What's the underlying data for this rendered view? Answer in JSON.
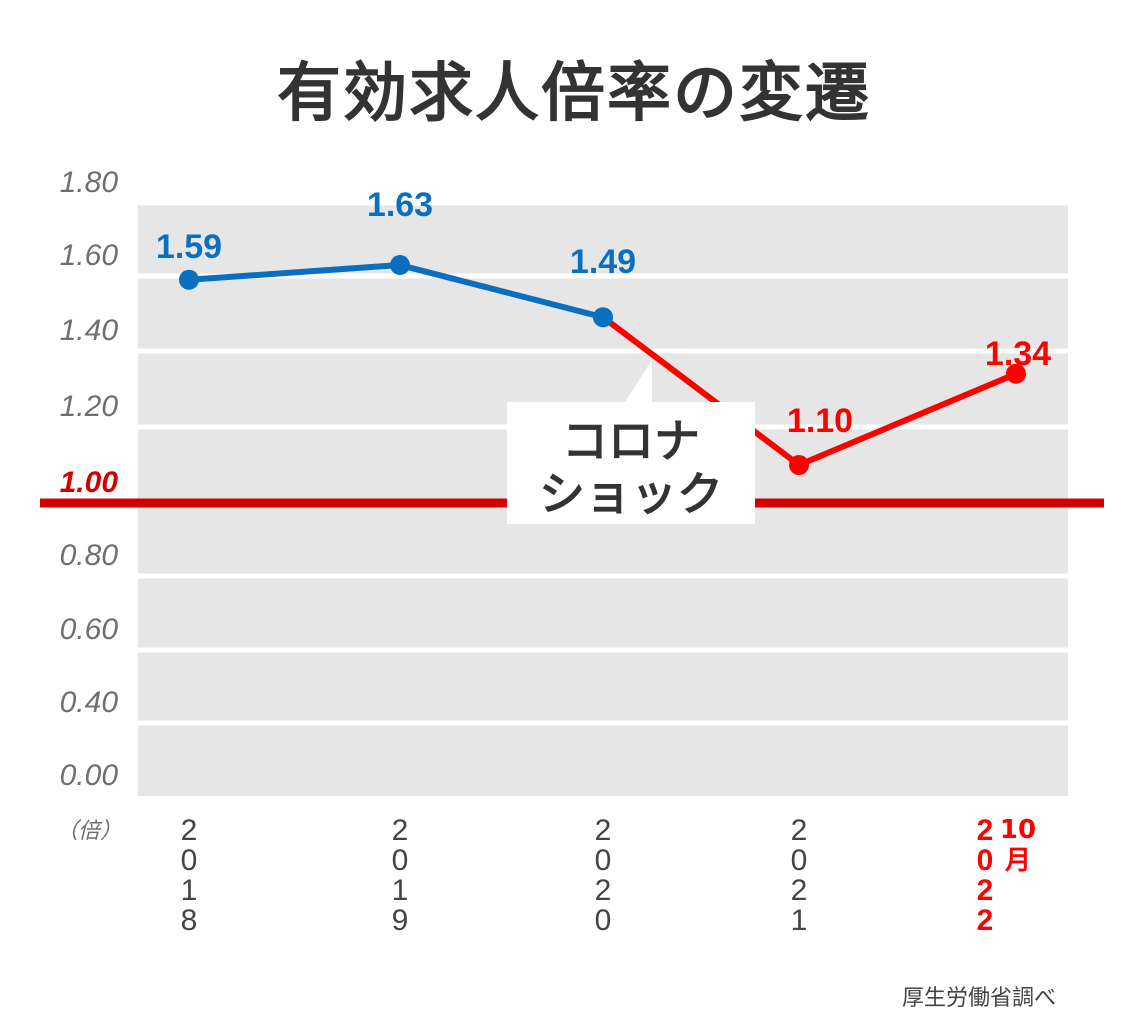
{
  "title": "有効求人倍率の変遷",
  "source": "厚生労働省調べ",
  "callout": {
    "line1": "コロナ",
    "line2": "ショック"
  },
  "chart_data": {
    "type": "line",
    "title": "有効求人倍率の変遷",
    "ylabel": "（倍）",
    "yticks": [
      "0.00",
      "0.40",
      "0.60",
      "0.80",
      "1.00",
      "1.20",
      "1.40",
      "1.60",
      "1.80"
    ],
    "ytick_values": [
      0.0,
      0.4,
      0.6,
      0.8,
      1.0,
      1.2,
      1.4,
      1.6,
      1.8
    ],
    "reference_line": {
      "value": 1.0,
      "label": "1.00",
      "color": "#d40000"
    },
    "categories": [
      "2018",
      "2019",
      "2020",
      "2021",
      "2022"
    ],
    "category_note": "10月",
    "values": [
      1.59,
      1.63,
      1.49,
      1.1,
      1.34
    ],
    "labels": [
      "1.59",
      "1.63",
      "1.49",
      "1.10",
      "1.34"
    ],
    "colors": {
      "before": "#0a6fbf",
      "after": "#ff0000",
      "plot_bg": "#e6e6e6",
      "grid": "#ffffff"
    },
    "grid": true,
    "legend": "none"
  }
}
